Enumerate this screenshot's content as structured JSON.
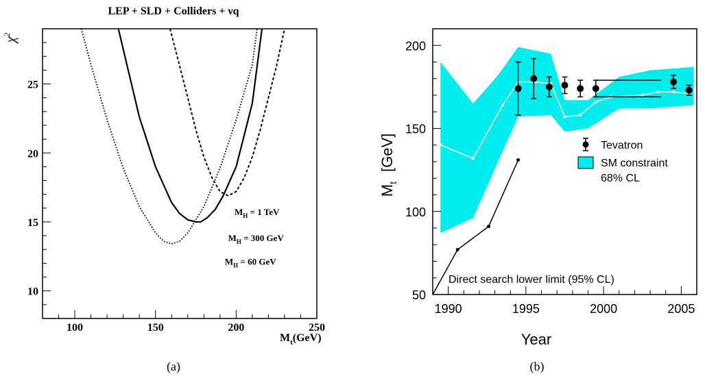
{
  "colors": {
    "band": "#00eeee",
    "line": "#000000",
    "white_curve": "#ffffff"
  },
  "panel_labels": {
    "a": "(a)",
    "b": "(b)"
  },
  "chart_data": [
    {
      "type": "line",
      "title": "LEP + SLD + Colliders + νq",
      "xlabel": "M",
      "xlabel_sub": "t",
      "xlabel_unit": "(GeV)",
      "ylabel": "χ",
      "ylabel_sup": "2",
      "xlim": [
        80,
        250
      ],
      "ylim": [
        8,
        29
      ],
      "xticks": [
        100,
        150,
        200,
        250
      ],
      "yticks": [
        10,
        15,
        20,
        25
      ],
      "grid": false,
      "series": [
        {
          "id": "mh60",
          "style": "dotted",
          "x": [
            104,
            110,
            120,
            130,
            140,
            150,
            155,
            160,
            165,
            170,
            180,
            190,
            200,
            210,
            213
          ],
          "y": [
            29.0,
            26.4,
            22.4,
            18.9,
            16.1,
            14.2,
            13.6,
            13.4,
            13.6,
            14.2,
            16.1,
            18.9,
            22.4,
            26.4,
            29.0
          ]
        },
        {
          "id": "mh300",
          "style": "solid",
          "x": [
            127,
            140,
            150,
            160,
            165,
            170,
            175,
            178,
            182,
            187,
            192,
            200,
            210,
            216
          ],
          "y": [
            29.0,
            22.6,
            19.0,
            16.4,
            15.6,
            15.15,
            15.0,
            15.0,
            15.3,
            15.9,
            16.9,
            19.0,
            23.6,
            29.0
          ]
        },
        {
          "id": "mh1000",
          "style": "dashed",
          "x": [
            159,
            165,
            170,
            175,
            180,
            185,
            190,
            195,
            200,
            205,
            210,
            215,
            220,
            225,
            230
          ],
          "y": [
            29.0,
            26.3,
            24.0,
            21.7,
            19.7,
            18.2,
            17.2,
            16.9,
            17.2,
            18.2,
            19.7,
            21.7,
            24.0,
            26.3,
            29.0
          ]
        }
      ],
      "annotations": [
        {
          "text": "M",
          "sub": "H",
          "rest": " = 1 TeV",
          "x": 199,
          "y": 15.5
        },
        {
          "text": "M",
          "sub": "H",
          "rest": " = 300 GeV",
          "x": 195,
          "y": 13.6
        },
        {
          "text": "M",
          "sub": "H",
          "rest": " = 60 GeV",
          "x": 193,
          "y": 11.9
        }
      ]
    },
    {
      "type": "line",
      "xlabel": "Year",
      "ylabel": "M",
      "ylabel_sub": "t",
      "ylabel_unit": "[GeV]",
      "xlim": [
        1989,
        2006
      ],
      "ylim": [
        50,
        210
      ],
      "xticks": [
        1990,
        1995,
        2000,
        2005
      ],
      "yticks": [
        50,
        100,
        150,
        200
      ],
      "grid": false,
      "legend": {
        "placement": "right",
        "entries": [
          "Tevatron",
          "SM constraint",
          "68% CL"
        ]
      },
      "band": {
        "name": "SM constraint",
        "x": [
          1989.5,
          1991.6,
          1993.2,
          1994.5,
          1996.6,
          1997.5,
          1999.0,
          2001.0,
          2003.0,
          2005.8
        ],
        "upper": [
          190,
          165,
          182,
          199,
          195,
          167,
          167,
          181,
          185,
          187
        ],
        "lower": [
          87,
          96,
          130,
          157,
          158,
          148,
          150,
          162,
          162,
          164
        ]
      },
      "sm_central": {
        "x": [
          1989.5,
          1991.6,
          1993.5,
          1994.5,
          1995.5,
          1996.6,
          1997.5,
          1998.5,
          1999.5,
          2000.5,
          2002.5,
          2003.5,
          2004.5,
          2005.5
        ],
        "y": [
          140,
          132,
          164,
          178,
          178,
          177,
          157,
          158,
          166,
          169,
          170,
          172,
          172,
          171
        ]
      },
      "direct_limit": {
        "label": "Direct search lower limit (95% CL)",
        "x": [
          1989,
          1990.6,
          1992.6,
          1994.5
        ],
        "y": [
          50,
          77,
          91,
          131
        ]
      },
      "tevatron": {
        "name": "Tevatron",
        "x": [
          1994.5,
          1995.5,
          1996.5,
          1997.5,
          1998.5,
          1999.5,
          2004.5,
          2005.5
        ],
        "y": [
          174,
          180,
          175,
          176,
          174,
          174,
          178,
          173
        ],
        "err": [
          16,
          12,
          6,
          5,
          5,
          5,
          4,
          3
        ]
      },
      "horizontal_bars": [
        {
          "x0": 1999.5,
          "x1": 2003.7,
          "y": 179
        },
        {
          "x0": 1999.5,
          "x1": 2003.7,
          "y": 169
        }
      ]
    }
  ]
}
